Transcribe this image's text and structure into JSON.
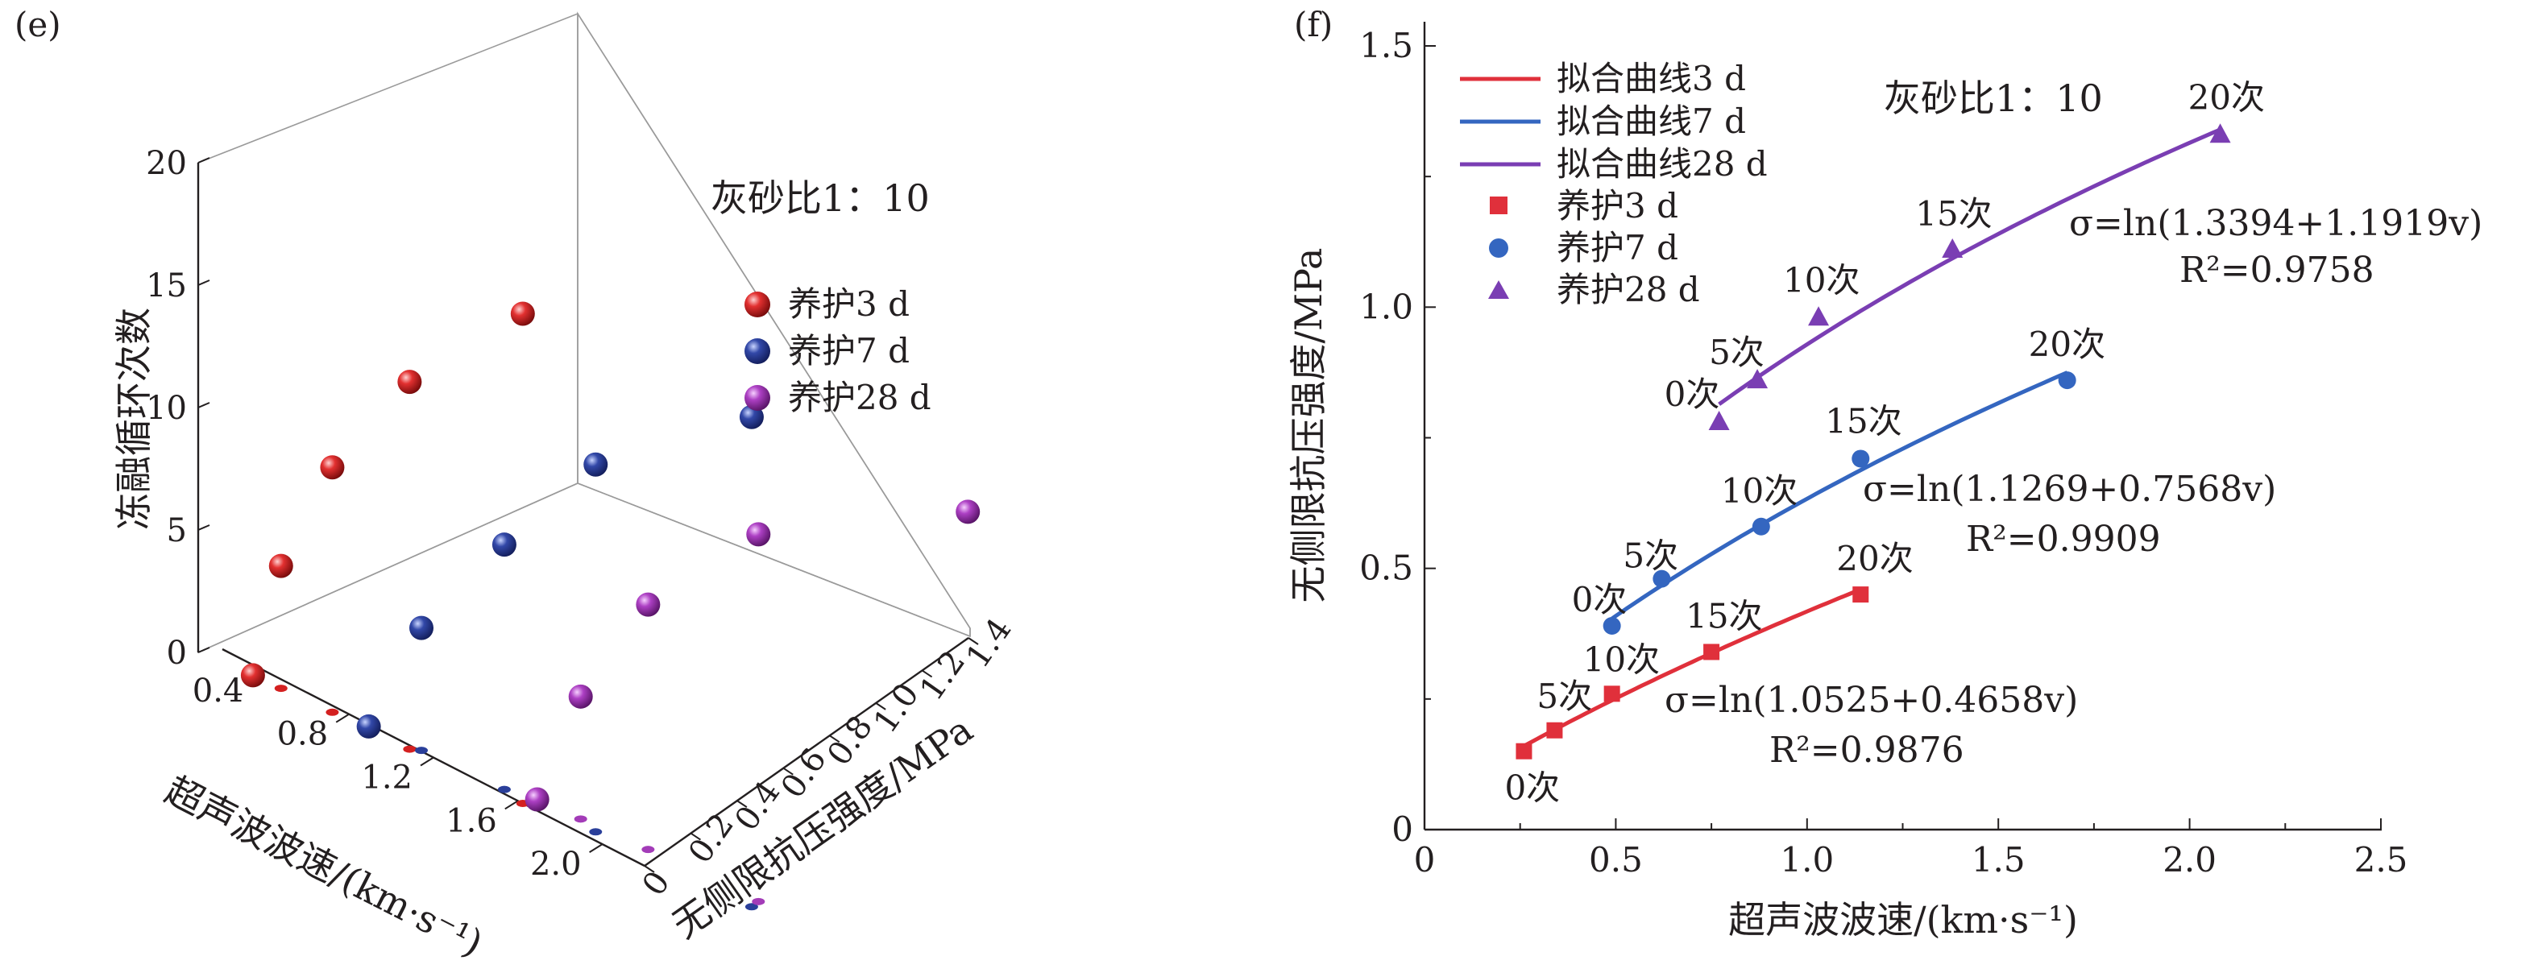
{
  "colors": {
    "cure3": "#e0303b",
    "cure7": "#3466c0",
    "cure28": "#7a3eb3",
    "sphere3": "#d42020",
    "sphere7": "#2a3f9a",
    "sphere28": "#a33cb8",
    "tick_gray": "#808080"
  },
  "chart_data": [
    {
      "type": "scatter3d",
      "panel_label": "(e)",
      "annotation": "灰砂比1：10",
      "xlabel": "超声波波速/(km·s⁻¹)",
      "ylabel": "无侧限抗压强度/MPa",
      "zlabel": "冻融循环次数",
      "xlim": [
        0.2,
        2.2
      ],
      "ylim": [
        0,
        1.4
      ],
      "zlim": [
        0,
        20
      ],
      "x_ticks": [
        "0.4",
        "0.8",
        "1.2",
        "1.6",
        "2.0"
      ],
      "y_ticks": [
        "0",
        "0.2",
        "0.4",
        "0.6",
        "0.8",
        "1.0",
        "1.2",
        "1.4"
      ],
      "z_ticks": [
        "0",
        "5",
        "10",
        "15",
        "20"
      ],
      "legend": [
        "养护3 d",
        "养护7 d",
        "养护28 d"
      ],
      "series": [
        {
          "name": "养护3 d",
          "color_key": "sphere3",
          "points": [
            [
              0.26,
              0.15,
              0
            ],
            [
              0.34,
              0.19,
              5
            ],
            [
              0.49,
              0.26,
              10
            ],
            [
              0.75,
              0.34,
              15
            ],
            [
              1.14,
              0.45,
              20
            ]
          ]
        },
        {
          "name": "养护7 d",
          "color_key": "sphere7",
          "points": [
            [
              0.49,
              0.39,
              0
            ],
            [
              0.62,
              0.48,
              5
            ],
            [
              0.88,
              0.58,
              10
            ],
            [
              1.14,
              0.71,
              15
            ],
            [
              1.68,
              0.86,
              20
            ]
          ]
        },
        {
          "name": "养护28 d",
          "color_key": "sphere28",
          "points": [
            [
              0.77,
              0.78,
              0
            ],
            [
              0.87,
              0.86,
              5
            ],
            [
              1.03,
              0.98,
              10
            ],
            [
              1.38,
              1.11,
              15
            ],
            [
              2.08,
              1.33,
              20
            ]
          ]
        }
      ]
    },
    {
      "type": "scatter",
      "panel_label": "(f)",
      "annotation": "灰砂比1：10",
      "xlabel": "超声波波速/(km·s⁻¹)",
      "ylabel": "无侧限抗压强度/MPa",
      "xlim": [
        0,
        2.5
      ],
      "ylim": [
        0,
        1.5
      ],
      "x_ticks": [
        0,
        0.5,
        1.0,
        1.5,
        2.0,
        2.5
      ],
      "x_tick_labels": [
        "0",
        "0.5",
        "1.0",
        "1.5",
        "2.0",
        "2.5"
      ],
      "y_ticks": [
        0,
        0.5,
        1.0,
        1.5
      ],
      "y_tick_labels": [
        "0",
        "0.5",
        "1.0",
        "1.5"
      ],
      "legend_fit": [
        "拟合曲线3 d",
        "拟合曲线7 d",
        "拟合曲线28 d"
      ],
      "legend_points": [
        "养护3 d",
        "养护7 d",
        "养护28 d"
      ],
      "point_labels": [
        "0次",
        "5次",
        "10次",
        "15次",
        "20次"
      ],
      "series": [
        {
          "name": "养护3 d",
          "fit_name": "拟合曲线3 d",
          "marker": "square",
          "color_key": "cure3",
          "x": [
            0.26,
            0.34,
            0.49,
            0.75,
            1.14
          ],
          "y": [
            0.15,
            0.19,
            0.26,
            0.34,
            0.45
          ],
          "fit": {
            "a": 1.0525,
            "b": 0.4658
          },
          "equation": "σ=ln(1.0525+0.4658v)",
          "r2": "R²=0.9876"
        },
        {
          "name": "养护7 d",
          "fit_name": "拟合曲线7 d",
          "marker": "circle",
          "color_key": "cure7",
          "x": [
            0.49,
            0.62,
            0.88,
            1.14,
            1.68
          ],
          "y": [
            0.39,
            0.48,
            0.58,
            0.71,
            0.86
          ],
          "fit": {
            "a": 1.1269,
            "b": 0.7568
          },
          "equation": "σ=ln(1.1269+0.7568v)",
          "r2": "R²=0.9909"
        },
        {
          "name": "养护28 d",
          "fit_name": "拟合曲线28 d",
          "marker": "triangle",
          "color_key": "cure28",
          "x": [
            0.77,
            0.87,
            1.03,
            1.38,
            2.08
          ],
          "y": [
            0.78,
            0.86,
            0.98,
            1.11,
            1.33
          ],
          "fit": {
            "a": 1.3394,
            "b": 1.1919
          },
          "equation": "σ=ln(1.3394+1.1919v)",
          "r2": "R²=0.9758"
        }
      ]
    }
  ]
}
